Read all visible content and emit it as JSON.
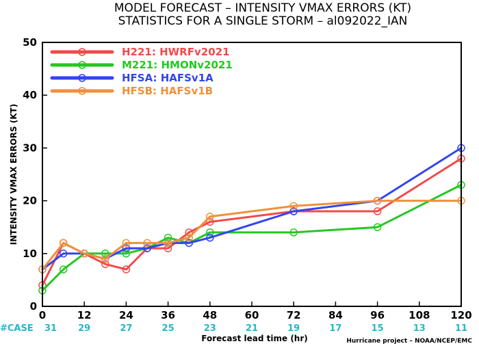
{
  "title_line1": "MODEL FORECAST – INTENSITY VMAX ERRORS (KT)",
  "title_line2": "STATISTICS FOR A SINGLE STORM – al092022_IAN",
  "credit": "Hurricane project – NOAA/NCEP/EMC",
  "chart_data": {
    "type": "line",
    "xlabel": "Forecast lead time (hr)",
    "ylabel": "INTENSITY VMAX ERRORS (KT)",
    "xlim": [
      0,
      120
    ],
    "ylim": [
      0,
      50
    ],
    "x_ticks": [
      "0",
      "12",
      "24",
      "36",
      "48",
      "60",
      "72",
      "84",
      "96",
      "108",
      "120"
    ],
    "y_ticks": [
      "0",
      "10",
      "20",
      "30",
      "40",
      "50"
    ],
    "case_label": "#CASE",
    "case_counts": [
      "31",
      "29",
      "27",
      "25",
      "23",
      "21",
      "19",
      "17",
      "15",
      "13",
      "11"
    ],
    "case_color": "#22b8c8",
    "legend_position": "top-left",
    "series": [
      {
        "id": "h221",
        "name": "H221:  HWRFv2021",
        "color": "#f04a4a",
        "x": [
          0,
          6,
          12,
          18,
          24,
          30,
          36,
          42,
          48,
          72,
          96,
          120
        ],
        "values": [
          4,
          12,
          10,
          8,
          7,
          11,
          11,
          14,
          16,
          18,
          18,
          28
        ]
      },
      {
        "id": "m221",
        "name": "M221:  HMONv2021",
        "color": "#22c822",
        "x": [
          0,
          6,
          12,
          18,
          24,
          30,
          36,
          42,
          48,
          72,
          96,
          120
        ],
        "values": [
          3,
          7,
          10,
          10,
          10,
          11,
          13,
          12,
          14,
          14,
          15,
          23
        ]
      },
      {
        "id": "hfsa",
        "name": "HFSA:  HAFSv1A",
        "color": "#3344ee",
        "x": [
          0,
          6,
          12,
          18,
          24,
          30,
          36,
          42,
          48,
          72,
          96,
          120
        ],
        "values": [
          7,
          10,
          10,
          9,
          11,
          11,
          12,
          12,
          13,
          18,
          20,
          30
        ]
      },
      {
        "id": "hfsb",
        "name": "HFSB:  HAFSv1B",
        "color": "#f0903a",
        "x": [
          0,
          6,
          12,
          18,
          24,
          30,
          36,
          42,
          48,
          72,
          96,
          120
        ],
        "values": [
          7,
          12,
          10,
          9,
          12,
          12,
          12,
          13,
          17,
          19,
          20,
          20
        ]
      }
    ]
  }
}
